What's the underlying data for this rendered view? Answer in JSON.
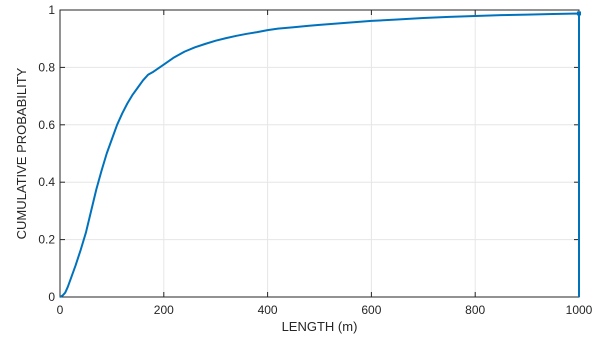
{
  "chart_data": {
    "type": "line",
    "title": "",
    "xlabel": "LENGTH (m)",
    "ylabel": "CUMULATIVE PROBABILITY",
    "xlim": [
      0,
      1000
    ],
    "ylim": [
      0,
      1
    ],
    "grid": true,
    "xticks": [
      0,
      200,
      400,
      600,
      800,
      1000
    ],
    "yticks": [
      0,
      0.2,
      0.4,
      0.6,
      0.8,
      1
    ],
    "xtick_labels": [
      "0",
      "200",
      "400",
      "600",
      "800",
      "1000"
    ],
    "ytick_labels": [
      "0",
      "0.2",
      "0.4",
      "0.6",
      "0.8",
      "1"
    ],
    "series": [
      {
        "color": "#0072bd",
        "x": [
          0,
          5,
          10,
          15,
          20,
          30,
          40,
          50,
          60,
          70,
          80,
          90,
          100,
          110,
          120,
          130,
          140,
          150,
          160,
          170,
          180,
          200,
          220,
          240,
          260,
          280,
          300,
          320,
          340,
          360,
          380,
          400,
          420,
          450,
          480,
          500,
          550,
          600,
          650,
          700,
          750,
          800,
          850,
          900,
          950,
          1000,
          1000
        ],
        "y": [
          0,
          0.005,
          0.015,
          0.035,
          0.06,
          0.11,
          0.165,
          0.225,
          0.3,
          0.375,
          0.44,
          0.5,
          0.55,
          0.6,
          0.64,
          0.675,
          0.705,
          0.73,
          0.755,
          0.775,
          0.785,
          0.81,
          0.835,
          0.855,
          0.87,
          0.882,
          0.893,
          0.902,
          0.91,
          0.917,
          0.923,
          0.93,
          0.935,
          0.94,
          0.945,
          0.948,
          0.955,
          0.962,
          0.967,
          0.972,
          0.976,
          0.979,
          0.982,
          0.984,
          0.986,
          0.988,
          0
        ]
      }
    ]
  }
}
